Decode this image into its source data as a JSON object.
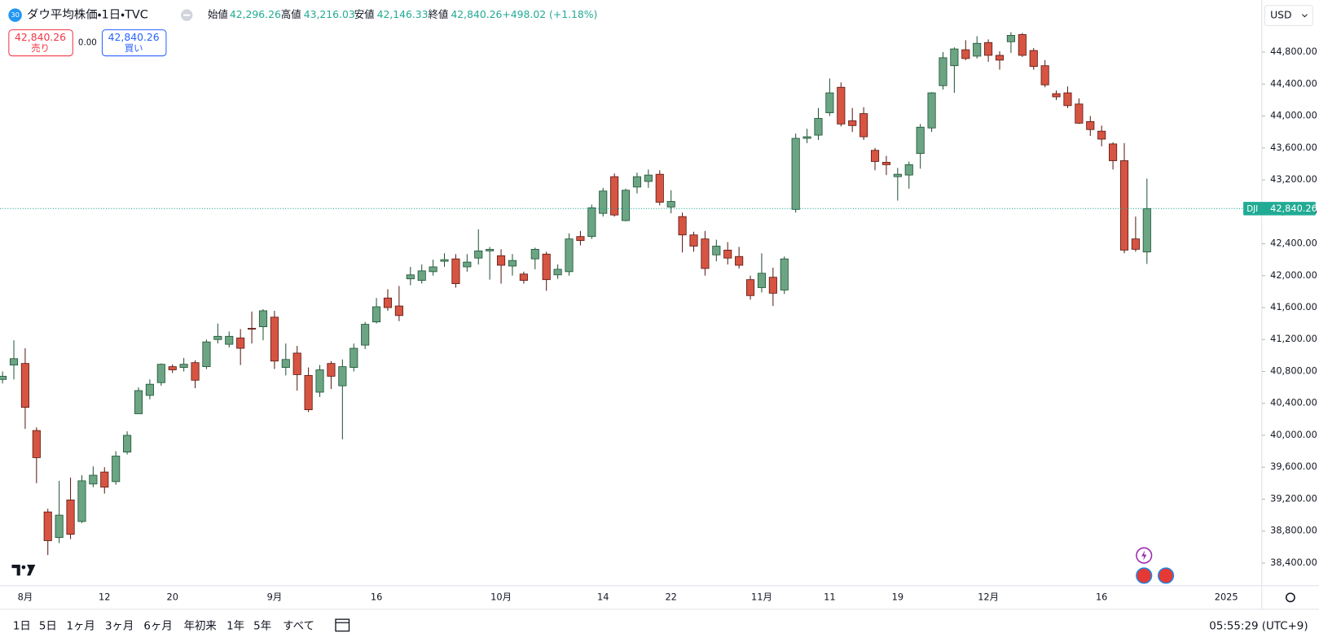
{
  "header": {
    "badge": "30",
    "title": "ダウ平均株価・1日・TVC",
    "open_label": "始値",
    "open": "42,296.26",
    "high_label": "高値",
    "high": "43,216.03",
    "low_label": "安値",
    "low": "42,146.33",
    "close_label": "終値",
    "close": "42,840.26",
    "change": "+498.02 (+1.18%)"
  },
  "trade": {
    "sell_price": "42,840.26",
    "sell_label": "売り",
    "spread": "0.00",
    "buy_price": "42,840.26",
    "buy_label": "買い"
  },
  "currency": "USD",
  "toolbar": {
    "periods": [
      "1日",
      "5日",
      "1ヶ月",
      "3ヶ月",
      "6ヶ月",
      "年初来",
      "1年",
      "5年",
      "すべて"
    ],
    "time": "05:55:29 (UTC+9)"
  },
  "chart_data": {
    "type": "candlestick",
    "grid": false,
    "up_color": "#6ba583",
    "up_border": "#225437",
    "down_color": "#d75442",
    "down_border": "#5b1a13",
    "price_line_color": "#22ab94",
    "categories": [
      null,
      null,
      "8月",
      null,
      null,
      null,
      null,
      null,
      null,
      "12",
      null,
      null,
      null,
      null,
      null,
      "20",
      null,
      null,
      null,
      null,
      null,
      null,
      null,
      null,
      "9月",
      null,
      null,
      null,
      null,
      null,
      null,
      null,
      null,
      "16",
      null,
      null,
      null,
      null,
      null,
      null,
      null,
      null,
      null,
      null,
      "10月",
      null,
      null,
      null,
      null,
      null,
      null,
      null,
      null,
      "14",
      null,
      null,
      null,
      null,
      null,
      "22",
      null,
      null,
      null,
      null,
      null,
      null,
      null,
      "11月",
      null,
      null,
      null,
      null,
      null,
      "11",
      null,
      null,
      null,
      null,
      null,
      "19",
      null,
      null,
      null,
      null,
      null,
      null,
      null,
      "12月",
      null,
      null,
      null,
      null,
      null,
      null,
      null,
      null,
      null,
      "16",
      null,
      null,
      null,
      null,
      null,
      null,
      null,
      null,
      null,
      null,
      "2025"
    ],
    "series": [
      {
        "name": "DJI",
        "open": [
          40700,
          40880,
          40900,
          40060,
          39040,
          38720,
          39190,
          38920,
          39390,
          39540,
          39420,
          39790,
          40270,
          40500,
          40660,
          40860,
          40850,
          40910,
          40860,
          41200,
          41140,
          41220,
          41340,
          41360,
          41480,
          40850,
          41030,
          40750,
          40540,
          40900,
          40620,
          40850,
          41130,
          41420,
          41720,
          41620,
          41960,
          41940,
          42050,
          42180,
          42210,
          42110,
          42220,
          42310,
          42250,
          42120,
          42020,
          42210,
          42270,
          42010,
          42050,
          42490,
          42490,
          42780,
          43240,
          42690,
          43110,
          43180,
          43270,
          42860,
          42740,
          42510,
          42460,
          42260,
          42320,
          42240,
          41950,
          41850,
          41980,
          41820,
          42830,
          43720,
          43760,
          44040,
          44360,
          43940,
          44030,
          43570,
          43420,
          43240,
          43260,
          43530,
          43850,
          44380,
          44630,
          44830,
          44750,
          44920,
          44760,
          44930,
          45020,
          44820,
          44630,
          44280,
          44290,
          44150,
          43930,
          43810,
          43650,
          43440,
          42460,
          42296.26,
          null,
          null,
          null,
          null,
          null,
          null,
          null
        ],
        "high": [
          40800,
          41190,
          41090,
          40100,
          39080,
          39430,
          39470,
          39500,
          39610,
          39600,
          39800,
          40050,
          40600,
          40700,
          40900,
          40890,
          40970,
          40940,
          41200,
          41400,
          41300,
          41330,
          41550,
          41580,
          41560,
          41150,
          41120,
          40850,
          40880,
          40930,
          40950,
          41150,
          41420,
          41720,
          41830,
          41870,
          42110,
          42140,
          42200,
          42280,
          42270,
          42270,
          42580,
          42360,
          42330,
          42270,
          42050,
          42350,
          42300,
          42140,
          42530,
          42560,
          42890,
          43100,
          43280,
          43090,
          43290,
          43330,
          43320,
          43070,
          42790,
          42550,
          42560,
          42450,
          42420,
          42360,
          42000,
          42280,
          42100,
          42240,
          43780,
          43840,
          44100,
          44470,
          44420,
          44100,
          44110,
          43600,
          43500,
          43350,
          43430,
          43900,
          44300,
          44800,
          44860,
          44950,
          45000,
          44960,
          44810,
          45050,
          45040,
          44850,
          44700,
          44320,
          44370,
          44220,
          44000,
          43880,
          43670,
          43660,
          42740,
          43216.03,
          null,
          null,
          null,
          null,
          null,
          null,
          null
        ],
        "low": [
          40650,
          40700,
          40080,
          39400,
          38500,
          38650,
          38700,
          38900,
          39350,
          39270,
          39380,
          39760,
          40270,
          40450,
          40620,
          40780,
          40800,
          40590,
          40830,
          41150,
          41100,
          40880,
          41150,
          41190,
          40830,
          40750,
          40560,
          40290,
          40480,
          40580,
          39950,
          40800,
          41080,
          41400,
          41560,
          41430,
          41880,
          41900,
          42000,
          42110,
          41850,
          42050,
          42140,
          41950,
          41900,
          42000,
          41900,
          42080,
          41810,
          41960,
          42000,
          42380,
          42460,
          42740,
          42740,
          42680,
          43030,
          43100,
          42880,
          42780,
          42290,
          42300,
          42000,
          42180,
          42140,
          42090,
          41700,
          41790,
          41620,
          41770,
          42790,
          43660,
          43700,
          44000,
          43870,
          43800,
          43700,
          43320,
          43260,
          42940,
          43090,
          43340,
          43800,
          44330,
          44290,
          44700,
          44720,
          44680,
          44580,
          44790,
          44740,
          44580,
          44360,
          44200,
          44100,
          43900,
          43750,
          43620,
          43330,
          42280,
          42300,
          42146.33,
          null,
          null,
          null,
          null,
          null,
          null,
          null
        ],
        "close": [
          40740,
          40960,
          40350,
          39720,
          38680,
          39000,
          38760,
          39430,
          39500,
          39350,
          39740,
          40000,
          40560,
          40640,
          40890,
          40820,
          40890,
          40690,
          41170,
          41240,
          41240,
          41090,
          41330,
          41560,
          40930,
          40950,
          40760,
          40320,
          40820,
          40740,
          40860,
          41090,
          41390,
          41610,
          41600,
          41500,
          42010,
          42060,
          42110,
          42200,
          41900,
          42170,
          42310,
          42330,
          42130,
          42190,
          41940,
          42330,
          41950,
          42080,
          42460,
          42440,
          42850,
          43060,
          42760,
          43070,
          43240,
          43260,
          42920,
          42930,
          42510,
          42370,
          42090,
          42370,
          42220,
          42130,
          41750,
          42030,
          41780,
          42210,
          43720,
          43740,
          43970,
          44290,
          43900,
          43880,
          43740,
          43430,
          43390,
          43270,
          43390,
          43860,
          44290,
          44730,
          44840,
          44720,
          44910,
          44760,
          44700,
          45010,
          44760,
          44620,
          44390,
          44240,
          44130,
          43910,
          43830,
          43710,
          43440,
          42320,
          42330,
          42840.26,
          null,
          null,
          null,
          null,
          null,
          null,
          null
        ]
      }
    ],
    "ylim": [
      38116,
      45453
    ],
    "yticks": [
      {
        "value": 38400,
        "label": "38,400.00"
      },
      {
        "value": 38800,
        "label": "38,800.00"
      },
      {
        "value": 39200,
        "label": "39,200.00"
      },
      {
        "value": 39600,
        "label": "39,600.00"
      },
      {
        "value": 40000,
        "label": "40,000.00"
      },
      {
        "value": 40400,
        "label": "40,400.00"
      },
      {
        "value": 40800,
        "label": "40,800.00"
      },
      {
        "value": 41200,
        "label": "41,200.00"
      },
      {
        "value": 41600,
        "label": "41,600.00"
      },
      {
        "value": 42000,
        "label": "42,000.00"
      },
      {
        "value": 42400,
        "label": "42,400.00"
      },
      {
        "value": 42800,
        "label": "42,800.00"
      },
      {
        "value": 43200,
        "label": "43,200.00"
      },
      {
        "value": 43600,
        "label": "43,600.00"
      },
      {
        "value": 44000,
        "label": "44,000.00"
      },
      {
        "value": 44400,
        "label": "44,400.00"
      },
      {
        "value": 44800,
        "label": "44,800.00"
      }
    ]
  }
}
